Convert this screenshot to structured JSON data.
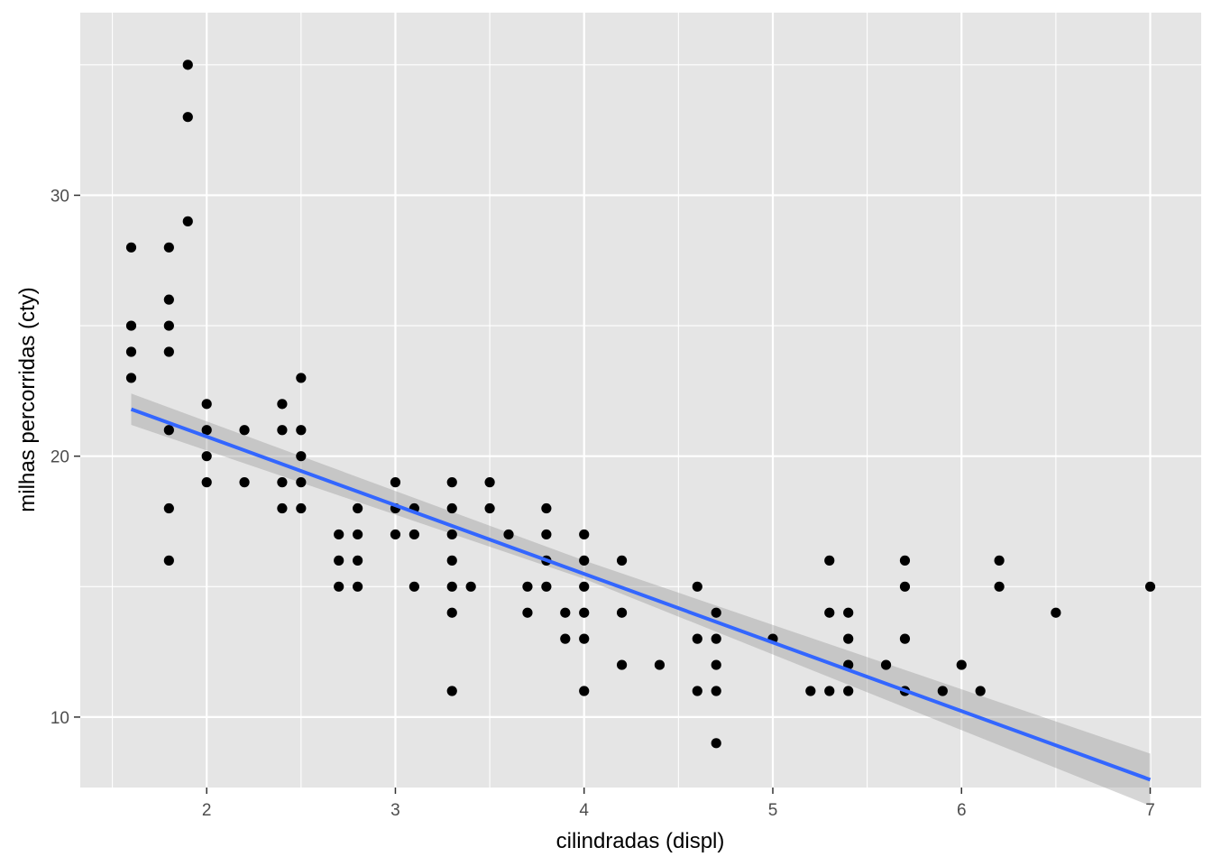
{
  "chart_data": {
    "type": "scatter",
    "xlabel": "cilindradas (displ)",
    "ylabel": "milhas percorridas (cty)",
    "xlim": [
      1.33,
      7.27
    ],
    "ylim": [
      7.3,
      37
    ],
    "x_ticks": [
      2,
      3,
      4,
      5,
      6,
      7
    ],
    "x_tick_labels": [
      "2",
      "3",
      "4",
      "5",
      "6",
      "7"
    ],
    "y_ticks": [
      10,
      20,
      30
    ],
    "y_tick_labels": [
      "10",
      "20",
      "30"
    ],
    "grid": true,
    "panel_background": "#e5e5e5",
    "grid_color": "#ffffff",
    "point_color": "#000000",
    "points": [
      [
        1.6,
        28
      ],
      [
        1.6,
        25
      ],
      [
        1.6,
        24
      ],
      [
        1.6,
        23
      ],
      [
        1.8,
        28
      ],
      [
        1.8,
        26
      ],
      [
        1.8,
        25
      ],
      [
        1.8,
        24
      ],
      [
        1.8,
        21
      ],
      [
        1.8,
        18
      ],
      [
        1.8,
        16
      ],
      [
        1.9,
        35
      ],
      [
        1.9,
        33
      ],
      [
        1.9,
        29
      ],
      [
        2.0,
        22
      ],
      [
        2.0,
        21
      ],
      [
        2.0,
        20
      ],
      [
        2.0,
        19
      ],
      [
        2.2,
        21
      ],
      [
        2.2,
        19
      ],
      [
        2.4,
        22
      ],
      [
        2.4,
        21
      ],
      [
        2.4,
        19
      ],
      [
        2.4,
        18
      ],
      [
        2.5,
        23
      ],
      [
        2.5,
        21
      ],
      [
        2.5,
        20
      ],
      [
        2.5,
        19
      ],
      [
        2.5,
        18
      ],
      [
        2.7,
        17
      ],
      [
        2.7,
        16
      ],
      [
        2.7,
        15
      ],
      [
        2.8,
        18
      ],
      [
        2.8,
        17
      ],
      [
        2.8,
        16
      ],
      [
        2.8,
        15
      ],
      [
        3.0,
        19
      ],
      [
        3.0,
        18
      ],
      [
        3.0,
        17
      ],
      [
        3.1,
        18
      ],
      [
        3.1,
        17
      ],
      [
        3.1,
        15
      ],
      [
        3.3,
        19
      ],
      [
        3.3,
        18
      ],
      [
        3.3,
        17
      ],
      [
        3.3,
        16
      ],
      [
        3.3,
        15
      ],
      [
        3.3,
        14
      ],
      [
        3.3,
        11
      ],
      [
        3.4,
        15
      ],
      [
        3.5,
        19
      ],
      [
        3.5,
        18
      ],
      [
        3.6,
        17
      ],
      [
        3.7,
        15
      ],
      [
        3.7,
        14
      ],
      [
        3.8,
        18
      ],
      [
        3.8,
        17
      ],
      [
        3.8,
        16
      ],
      [
        3.8,
        15
      ],
      [
        3.9,
        14
      ],
      [
        3.9,
        13
      ],
      [
        4.0,
        17
      ],
      [
        4.0,
        16
      ],
      [
        4.0,
        15
      ],
      [
        4.0,
        14
      ],
      [
        4.0,
        13
      ],
      [
        4.0,
        11
      ],
      [
        4.2,
        16
      ],
      [
        4.2,
        14
      ],
      [
        4.2,
        12
      ],
      [
        4.4,
        12
      ],
      [
        4.6,
        15
      ],
      [
        4.6,
        13
      ],
      [
        4.6,
        11
      ],
      [
        4.7,
        14
      ],
      [
        4.7,
        13
      ],
      [
        4.7,
        12
      ],
      [
        4.7,
        11
      ],
      [
        4.7,
        9
      ],
      [
        5.0,
        13
      ],
      [
        5.2,
        11
      ],
      [
        5.3,
        16
      ],
      [
        5.3,
        14
      ],
      [
        5.3,
        11
      ],
      [
        5.4,
        14
      ],
      [
        5.4,
        13
      ],
      [
        5.4,
        12
      ],
      [
        5.4,
        11
      ],
      [
        5.6,
        12
      ],
      [
        5.7,
        16
      ],
      [
        5.7,
        15
      ],
      [
        5.7,
        13
      ],
      [
        5.7,
        11
      ],
      [
        5.9,
        11
      ],
      [
        6.0,
        12
      ],
      [
        6.1,
        11
      ],
      [
        6.2,
        16
      ],
      [
        6.2,
        15
      ],
      [
        6.5,
        14
      ],
      [
        7.0,
        15
      ]
    ],
    "fit": {
      "method": "lm",
      "color": "#3366ff",
      "line": [
        [
          1.6,
          21.8
        ],
        [
          7.0,
          7.6
        ]
      ],
      "ribbon_color": "#999999",
      "ribbon_upper": [
        [
          1.6,
          22.4
        ],
        [
          4.0,
          16.0
        ],
        [
          7.0,
          8.6
        ]
      ],
      "ribbon_lower": [
        [
          1.6,
          21.2
        ],
        [
          4.0,
          15.3
        ],
        [
          7.0,
          6.6
        ]
      ]
    }
  }
}
